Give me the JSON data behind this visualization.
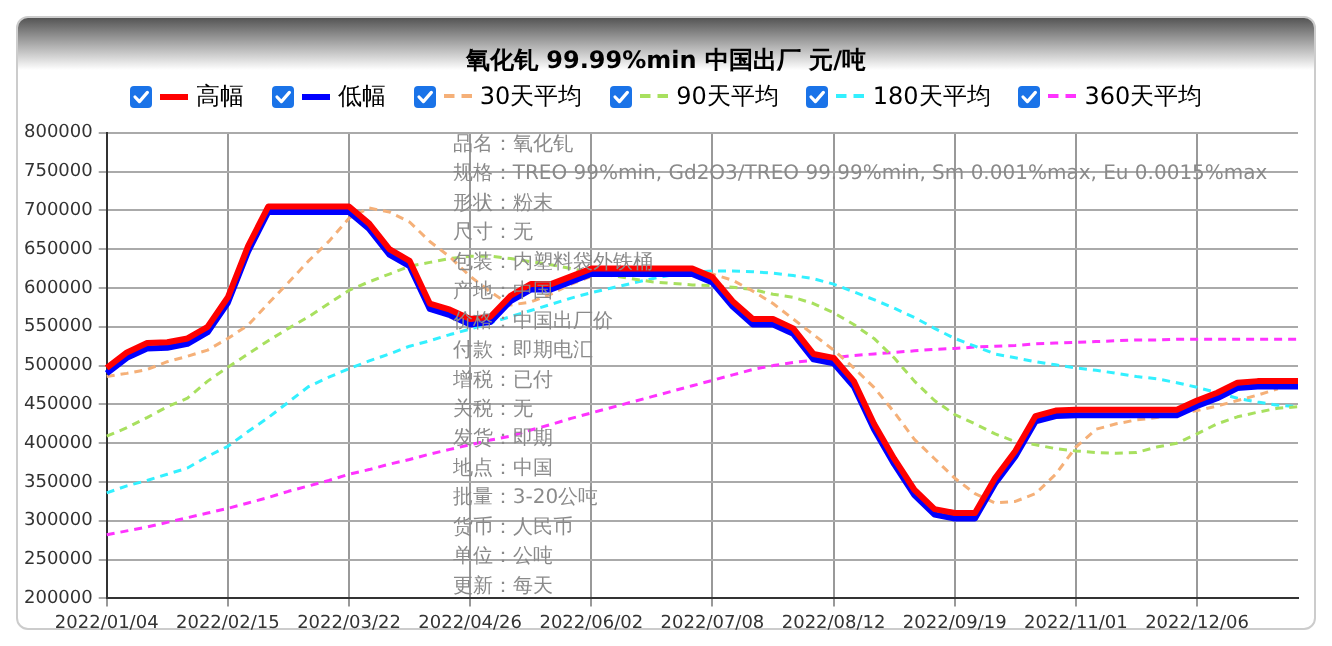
{
  "chart_data": {
    "type": "line",
    "title": "氧化钆 99.99%min 中国出厂 元/吨",
    "categories": [
      "2022/01/04",
      null,
      null,
      null,
      null,
      null,
      "2022/02/15",
      null,
      null,
      null,
      null,
      null,
      "2022/03/22",
      null,
      null,
      null,
      null,
      null,
      "2022/04/26",
      null,
      null,
      null,
      null,
      null,
      "2022/06/02",
      null,
      null,
      null,
      null,
      null,
      "2022/07/08",
      null,
      null,
      null,
      null,
      null,
      "2022/08/12",
      null,
      null,
      null,
      null,
      null,
      "2022/09/19",
      null,
      null,
      null,
      null,
      null,
      "2022/11/01",
      null,
      null,
      null,
      null,
      null,
      "2022/12/06",
      null,
      null,
      null,
      null,
      null
    ],
    "series": [
      {
        "name": "高幅",
        "color": "#ff0000",
        "line_style": "solid",
        "values": [
          497000,
          517000,
          529000,
          530000,
          535000,
          550000,
          588000,
          654000,
          705000,
          705000,
          705000,
          705000,
          705000,
          683000,
          650000,
          635000,
          580000,
          572000,
          560000,
          563000,
          590000,
          605000,
          605000,
          615000,
          625000,
          625000,
          625000,
          625000,
          625000,
          625000,
          614000,
          583000,
          560000,
          560000,
          548000,
          515000,
          510000,
          480000,
          425000,
          380000,
          340000,
          315000,
          310000,
          310000,
          355000,
          390000,
          435000,
          442000,
          443000,
          443000,
          443000,
          443000,
          443000,
          443000,
          455000,
          465000,
          478000,
          480000,
          480000,
          480000
        ]
      },
      {
        "name": "低幅",
        "color": "#0000ff",
        "line_style": "solid",
        "values": [
          490000,
          510000,
          522000,
          523000,
          528000,
          543000,
          581000,
          647000,
          698000,
          698000,
          698000,
          698000,
          698000,
          676000,
          643000,
          628000,
          573000,
          565000,
          553000,
          556000,
          583000,
          598000,
          598000,
          608000,
          618000,
          618000,
          618000,
          618000,
          618000,
          618000,
          607000,
          576000,
          553000,
          553000,
          541000,
          508000,
          503000,
          473000,
          418000,
          373000,
          333000,
          308000,
          303000,
          303000,
          348000,
          383000,
          428000,
          435000,
          436000,
          436000,
          436000,
          436000,
          436000,
          436000,
          448000,
          458000,
          471000,
          473000,
          473000,
          473000
        ]
      },
      {
        "name": "30天平均",
        "color": "#f5b078",
        "line_style": "dashed",
        "values": [
          486000,
          490000,
          495000,
          505000,
          512000,
          520000,
          535000,
          552000,
          580000,
          607000,
          635000,
          660000,
          690000,
          703000,
          698000,
          685000,
          660000,
          640000,
          615000,
          595000,
          578000,
          582000,
          592000,
          605000,
          615000,
          620000,
          623000,
          624000,
          624000,
          623000,
          618000,
          610000,
          596000,
          580000,
          560000,
          540000,
          520000,
          497000,
          472000,
          440000,
          405000,
          380000,
          355000,
          335000,
          323000,
          325000,
          335000,
          360000,
          395000,
          418000,
          425000,
          430000,
          433000,
          438000,
          442000,
          448000,
          455000,
          462000,
          470000,
          null
        ]
      },
      {
        "name": "90天平均",
        "color": "#a8e05f",
        "line_style": "dashed",
        "values": [
          409000,
          420000,
          433000,
          447000,
          458000,
          480000,
          498000,
          515000,
          532000,
          548000,
          563000,
          580000,
          597000,
          608000,
          618000,
          628000,
          633000,
          638000,
          641000,
          641000,
          638000,
          634000,
          630000,
          625000,
          620000,
          616000,
          612000,
          608000,
          606000,
          604000,
          603000,
          601000,
          598000,
          592000,
          588000,
          580000,
          568000,
          553000,
          535000,
          510000,
          480000,
          455000,
          437000,
          425000,
          412000,
          402000,
          398000,
          393000,
          390000,
          388000,
          387000,
          388000,
          395000,
          400000,
          412000,
          425000,
          434000,
          440000,
          445000,
          447000
        ]
      },
      {
        "name": "180天平均",
        "color": "#33f0ff",
        "line_style": "dashed",
        "values": [
          336000,
          345000,
          352000,
          360000,
          368000,
          383000,
          396000,
          415000,
          433000,
          453000,
          473000,
          485000,
          496000,
          506000,
          515000,
          525000,
          532000,
          540000,
          547000,
          555000,
          563000,
          571000,
          579000,
          587000,
          594000,
          600000,
          606000,
          612000,
          617000,
          620000,
          622000,
          622000,
          621000,
          619000,
          616000,
          612000,
          605000,
          595000,
          585000,
          574000,
          562000,
          548000,
          535000,
          525000,
          515000,
          510000,
          505000,
          501000,
          497000,
          494000,
          490000,
          486000,
          483000,
          478000,
          472000,
          465000,
          458000,
          453000,
          449000,
          447000
        ]
      },
      {
        "name": "360天平均",
        "color": "#ff33ff",
        "line_style": "dashed",
        "values": [
          282000,
          287000,
          292000,
          298000,
          304000,
          310000,
          316000,
          323000,
          330000,
          338000,
          345000,
          352000,
          360000,
          366000,
          373000,
          379000,
          386000,
          392000,
          398000,
          404000,
          409000,
          417000,
          424000,
          432000,
          439000,
          446000,
          453000,
          460000,
          467000,
          474000,
          481000,
          488000,
          495000,
          500000,
          504000,
          507000,
          510000,
          513000,
          515000,
          517000,
          519000,
          521000,
          522000,
          524000,
          525000,
          526000,
          528000,
          529000,
          530000,
          531000,
          532000,
          533000,
          533000,
          534000,
          534000,
          534000,
          534000,
          534000,
          534000,
          534000
        ]
      }
    ],
    "ylim": [
      200000,
      800000
    ],
    "yticks": [
      200000,
      250000,
      300000,
      350000,
      400000,
      450000,
      500000,
      550000,
      600000,
      650000,
      700000,
      750000,
      800000
    ],
    "grid": true,
    "legend": "top",
    "marker": "none",
    "annotations": [
      "品名：氧化钆",
      "规格：TREO 99%min, Gd2O3/TREO 99.99%min, Sm 0.001%max, Eu 0.0015%max",
      "形状：粉末",
      "尺寸：无",
      "包装：内塑料袋外铁桶",
      "产地：中国",
      "价格：中国出厂价",
      "付款：即期电汇",
      "增税：已付",
      "关税：无",
      "发货：即期",
      "地点：中国",
      "批量：3-20公吨",
      "货币：人民币",
      "单位：公吨",
      "更新：每天"
    ]
  }
}
